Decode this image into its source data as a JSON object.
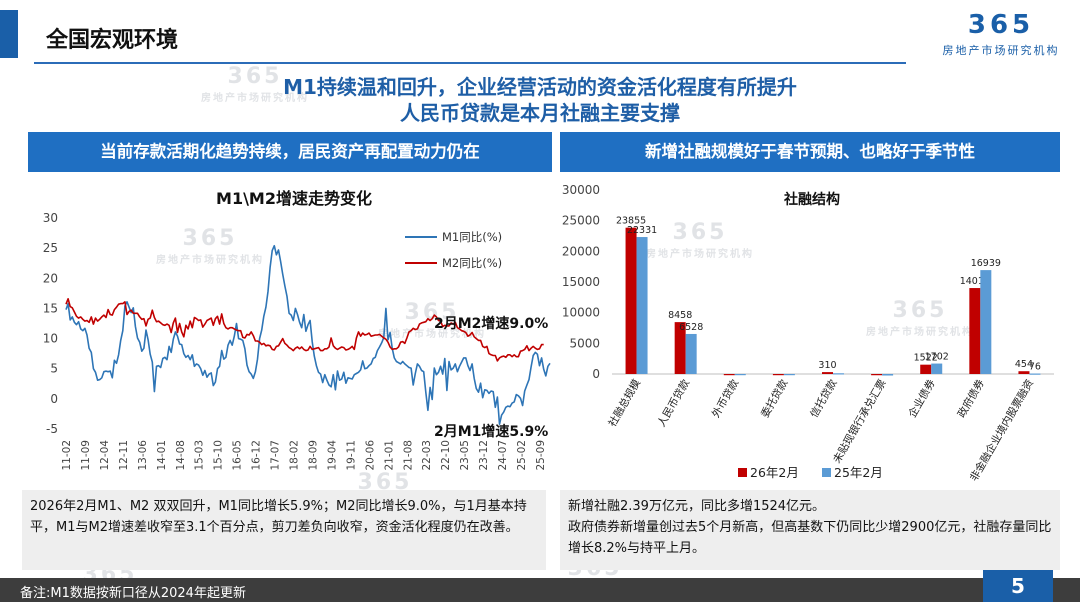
{
  "header": {
    "title": "全国宏观环境"
  },
  "logo": {
    "mark": "365",
    "name": "房地产市场研究机构"
  },
  "headline": {
    "line1": "M1持续温和回升，企业经营活动的资金活化程度有所提升",
    "line2": "人民币贷款是本月社融主要支撑"
  },
  "left_panel": {
    "heading": "当前存款活期化趋势持续，居民资产再配置动力仍在"
  },
  "right_panel": {
    "heading": "新增社融规模好于春节预期、也略好于季节性"
  },
  "left_note": "2026年2月M1、M2 双双回升，M1同比增长5.9%；M2同比增长9.0%，与1月基本持平，M1与M2增速差收窄至3.1个百分点，剪刀差负向收窄，资金活化程度仍在改善。",
  "right_note_1": "新增社融2.39万亿元，同比多增1524亿元。",
  "right_note_2": "政府债券新增量创过去5个月新高，但高基数下仍同比少增2900亿元，社融存量同比增长8.2%与持平上月。",
  "footer": {
    "note": "备注:M1数据按新口径从2024年起更新",
    "page": "5"
  },
  "colors": {
    "m1": "#2e75b6",
    "m2": "#c00000",
    "bar_2026": "#c00000",
    "bar_2025": "#5b9bd5",
    "accent": "#1f6fc2"
  },
  "chart_data": [
    {
      "type": "line",
      "title": "M1\\M2增速走势变化",
      "ylim": [
        -5,
        30
      ],
      "yticks": [
        -5,
        0,
        5,
        10,
        15,
        20,
        25,
        30
      ],
      "xticks": [
        "11-02",
        "11-09",
        "12-04",
        "12-11",
        "13-06",
        "14-01",
        "14-08",
        "15-03",
        "15-10",
        "16-05",
        "16-12",
        "17-07",
        "18-02",
        "18-09",
        "19-04",
        "19-11",
        "20-06",
        "21-01",
        "21-08",
        "22-03",
        "22-10",
        "23-05",
        "23-12",
        "24-07",
        "25-02",
        "25-09"
      ],
      "legend_position": "top-right",
      "annotations": [
        "2月M2增速9.0%",
        "2月M1增速5.9%"
      ],
      "series": [
        {
          "name": "M1同比(%)",
          "values": [
            14.8,
            15.8,
            13.1,
            13.6,
            12.7,
            12.3,
            12.8,
            11.6,
            11.3,
            11.7,
            10.6,
            8.4,
            7.7,
            5.0,
            4.4,
            3.1,
            3.2,
            3.5,
            4.5,
            4.6,
            4.5,
            4.6,
            3.5,
            6.4,
            5.9,
            7.3,
            9.7,
            11.3,
            15.4,
            16.1,
            15.2,
            14.3,
            15.1,
            12.0,
            10.1,
            9.4,
            7.9,
            8.4,
            11.4,
            9.8,
            7.4,
            6.1,
            1.2,
            5.4,
            5.5,
            5.2,
            6.7,
            6.9,
            6.5,
            8.7,
            7.7,
            9.9,
            11.1,
            10.4,
            9.1,
            9.0,
            7.5,
            6.9,
            7.2,
            6.5,
            7.3,
            5.4,
            5.8,
            5.6,
            5.0,
            3.9,
            4.7,
            3.6,
            4.1,
            4.3,
            2.2,
            2.8,
            5.0,
            5.4,
            8.0,
            6.6,
            6.9,
            8.9,
            9.7,
            8.9,
            10.4,
            12.5,
            10.0,
            9.9,
            9.7,
            8.3,
            5.6,
            4.5,
            4.1,
            3.4,
            4.5,
            6.6,
            10.0,
            11.4,
            13.7,
            15.2,
            17.8,
            21.8,
            24.6,
            25.4,
            23.9,
            24.7,
            22.8,
            20.7,
            18.7,
            17.0,
            14.2,
            13.9,
            13.0,
            15.0,
            14.0,
            12.7,
            11.8,
            14.0,
            11.2,
            12.3,
            13.0,
            9.5,
            7.1,
            5.5,
            4.4,
            4.1,
            2.7,
            4.0,
            3.1,
            2.3,
            2.0,
            4.0,
            1.5,
            4.6,
            3.1,
            3.3,
            4.4,
            2.6,
            3.5,
            3.4,
            3.3,
            4.0,
            4.2,
            4.4,
            4.8,
            6.3,
            5.0,
            5.1,
            5.5,
            5.8,
            6.7,
            6.9,
            8.0,
            8.6,
            9.3,
            10.2,
            15.0,
            9.8,
            11.0,
            8.4,
            6.8,
            6.2,
            6.0,
            5.8,
            6.2,
            5.8,
            5.5,
            5.2,
            5.1,
            2.3,
            4.2,
            5.8,
            5.4,
            4.7,
            4.5,
            1.1,
            -1.9,
            1.9,
            -0.1,
            5.1,
            4.0,
            4.4,
            5.4,
            4.1,
            6.7,
            1.4,
            6.2,
            4.8,
            5.1,
            5.8,
            4.5,
            5.4,
            6.1,
            6.8,
            6.8,
            5.5,
            4.7,
            5.8,
            3.4,
            1.7,
            1.1,
            2.6,
            0.2,
            1.5,
            1.4,
            0.9,
            1.3,
            1.2,
            -1.4,
            0.3,
            -4.2,
            -2.7,
            -2.2,
            -1.4,
            -1.2,
            -1.3,
            -0.7,
            -0.5,
            0.7,
            0.5,
            0.1,
            -1.1,
            1.3,
            2.3,
            3.2,
            5.3,
            7.2,
            7.7,
            7.4,
            5.5,
            6.8,
            4.9,
            3.8,
            5.4,
            5.9
          ]
        },
        {
          "name": "M2同比(%)",
          "values": [
            15.7,
            16.6,
            15.3,
            15.1,
            14.4,
            13.7,
            13.4,
            13.6,
            13.2,
            12.9,
            13.0,
            12.7,
            13.6,
            12.4,
            13.4,
            12.9,
            13.2,
            13.6,
            13.9,
            13.5,
            14.8,
            14.0,
            13.9,
            14.8,
            15.2,
            15.7,
            15.8,
            15.8,
            16.1,
            14.0,
            14.5,
            14.7,
            14.2,
            14.2,
            14.2,
            13.6,
            13.2,
            13.3,
            12.1,
            13.2,
            13.4,
            14.7,
            13.5,
            12.8,
            12.9,
            12.6,
            12.3,
            12.2,
            12.4,
            12.2,
            11.0,
            12.6,
            13.4,
            11.0,
            12.5,
            11.1,
            10.3,
            12.2,
            11.6,
            12.9,
            11.8,
            13.5,
            13.3,
            13.0,
            13.1,
            11.9,
            12.4,
            13.0,
            13.2,
            13.4,
            12.2,
            13.3,
            13.7,
            12.4,
            14.1,
            12.5,
            11.8,
            11.6,
            11.8,
            11.8,
            11.6,
            11.4,
            11.3,
            11.3,
            10.2,
            10.1,
            10.7,
            10.6,
            11.1,
            10.5,
            9.6,
            9.6,
            9.4,
            9.0,
            9.2,
            8.8,
            8.9,
            8.8,
            8.2,
            8.1,
            8.7,
            8.8,
            9.4,
            10.0,
            9.2,
            8.9,
            8.5,
            8.3,
            8.0,
            8.4,
            8.6,
            8.3,
            8.6,
            8.2,
            8.0,
            8.1,
            8.7,
            8.2,
            8.3,
            8.4,
            8.5,
            8.0,
            8.0,
            8.3,
            8.3,
            8.6,
            10.1,
            8.8,
            8.4,
            8.2,
            8.4,
            8.6,
            8.5,
            8.1,
            8.2,
            8.4,
            8.7,
            8.2,
            10.1,
            11.1,
            10.4,
            10.9,
            10.6,
            10.7,
            10.9,
            10.4,
            10.5,
            10.6,
            10.6,
            10.7,
            10.4,
            10.1,
            9.9,
            9.4,
            8.6,
            8.2,
            8.3,
            8.3,
            8.6,
            9.4,
            9.5,
            9.2,
            10.1,
            11.1,
            11.3,
            11.7,
            11.5,
            11.6,
            12.4,
            12.6,
            12.7,
            12.8,
            13.3,
            13.0,
            13.3,
            13.9,
            13.6,
            13.0,
            12.9,
            12.0,
            12.2,
            12.1,
            12.1,
            12.6,
            12.4,
            12.7,
            11.8,
            11.6,
            11.3,
            11.2,
            11.0,
            10.4,
            10.6,
            11.0,
            10.3,
            10.0,
            9.7,
            9.7,
            8.7,
            8.5,
            8.7,
            7.5,
            7.3,
            7.2,
            7.2,
            6.3,
            6.8,
            7.0,
            7.1,
            6.9,
            7.3,
            7.3,
            7.0,
            7.3,
            7.0,
            7.0,
            7.9,
            8.0,
            8.2,
            8.8,
            8.0,
            8.4,
            8.7,
            8.4,
            8.2,
            8.3,
            9.0,
            9.0
          ]
        }
      ]
    },
    {
      "type": "bar",
      "title": "社融结构",
      "ylim": [
        0,
        30000
      ],
      "yticks": [
        0,
        5000,
        10000,
        15000,
        20000,
        25000,
        30000
      ],
      "legend_position": "bottom",
      "categories": [
        "社融总规模",
        "人民币贷款",
        "外币贷款",
        "委托贷款",
        "信托贷款",
        "未贴现银行承兑汇票",
        "企业债券",
        "政府债券",
        "非金融企业境内股票融资"
      ],
      "series": [
        {
          "name": "26年2月",
          "values": [
            23855,
            8458,
            -100,
            -60,
            310,
            -200,
            1522,
            14014,
            454
          ],
          "labels": [
            "23855",
            "8458",
            "",
            "",
            "310",
            "",
            "1522",
            "14014",
            "454"
          ]
        },
        {
          "name": "25年2月",
          "values": [
            22331,
            6528,
            -80,
            -40,
            120,
            -250,
            1702,
            16939,
            76
          ],
          "labels": [
            "22331",
            "6528",
            "",
            "",
            "",
            "",
            "1702",
            "16939",
            "76"
          ]
        }
      ]
    }
  ]
}
